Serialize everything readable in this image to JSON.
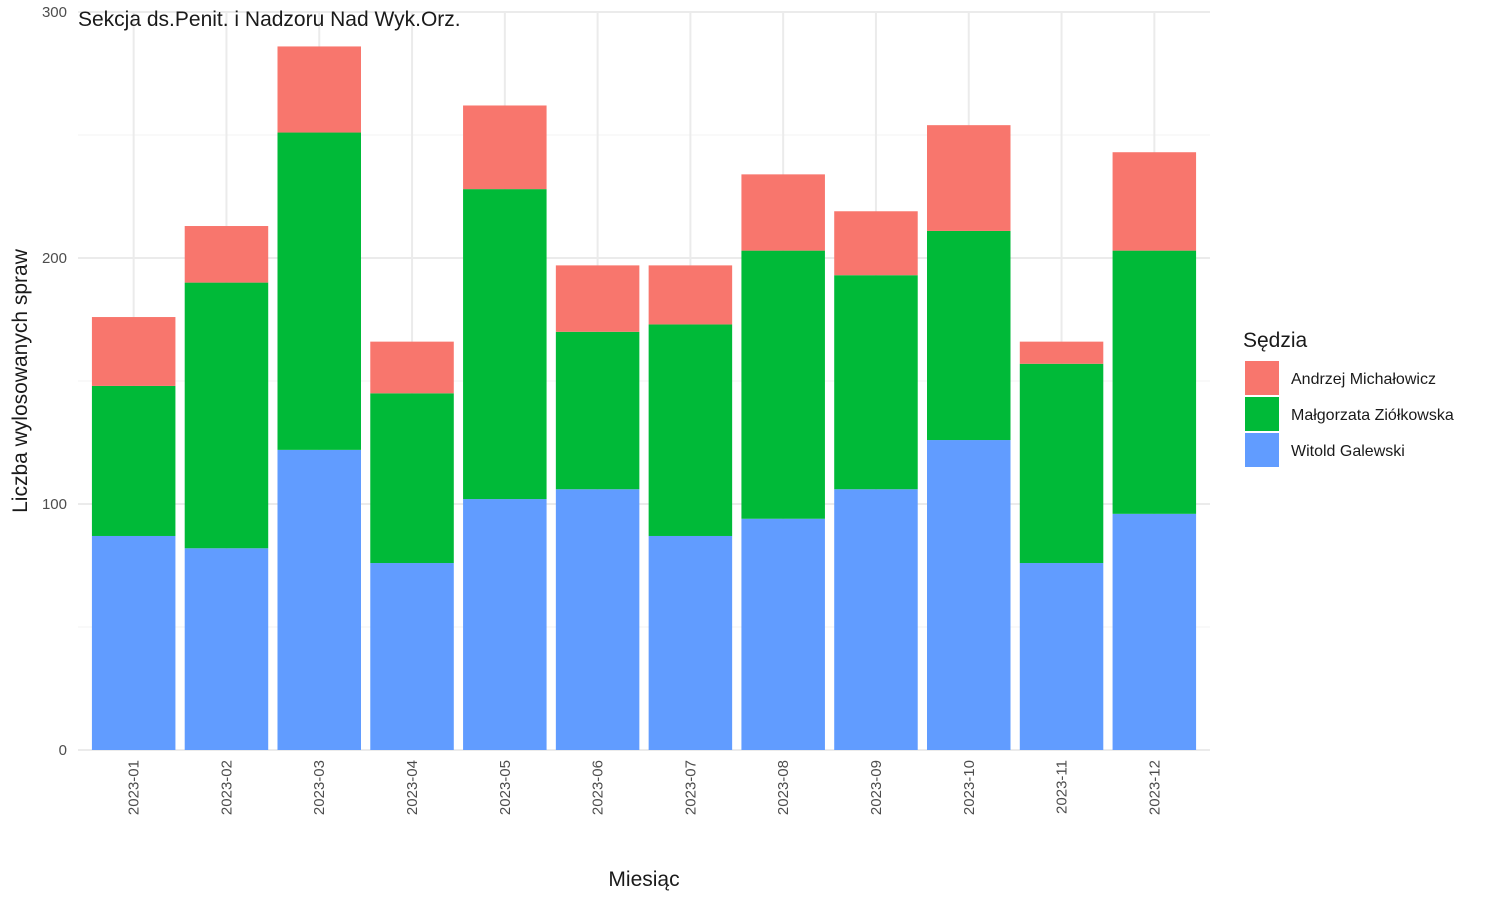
{
  "chart_data": {
    "type": "bar",
    "stacked": true,
    "title": "Sekcja ds.Penit. i Nadzoru Nad Wyk.Orz.",
    "xlabel": "Miesiąc",
    "ylabel": "Liczba wylosowanych spraw",
    "ylim": [
      0,
      300
    ],
    "yticks": [
      "0",
      "100",
      "200",
      "300"
    ],
    "grid": true,
    "legend_position": "right",
    "legend_title": "Sędzia",
    "categories": [
      "2023-01",
      "2023-02",
      "2023-03",
      "2023-04",
      "2023-05",
      "2023-06",
      "2023-07",
      "2023-08",
      "2023-09",
      "2023-10",
      "2023-11",
      "2023-12"
    ],
    "series": [
      {
        "name": "Witold Galewski",
        "color": "#619CFF",
        "values": [
          87,
          82,
          122,
          76,
          102,
          106,
          87,
          94,
          106,
          126,
          76,
          96
        ]
      },
      {
        "name": "Małgorzata Ziółkowska",
        "color": "#00BA38",
        "values": [
          61,
          108,
          129,
          69,
          126,
          64,
          86,
          109,
          87,
          85,
          81,
          107
        ]
      },
      {
        "name": "Andrzej Michałowicz",
        "color": "#F8766D",
        "values": [
          28,
          23,
          35,
          21,
          34,
          27,
          24,
          31,
          26,
          43,
          9,
          40
        ]
      }
    ],
    "legend_order": [
      "Andrzej Michałowicz",
      "Małgorzata Ziółkowska",
      "Witold Galewski"
    ]
  }
}
